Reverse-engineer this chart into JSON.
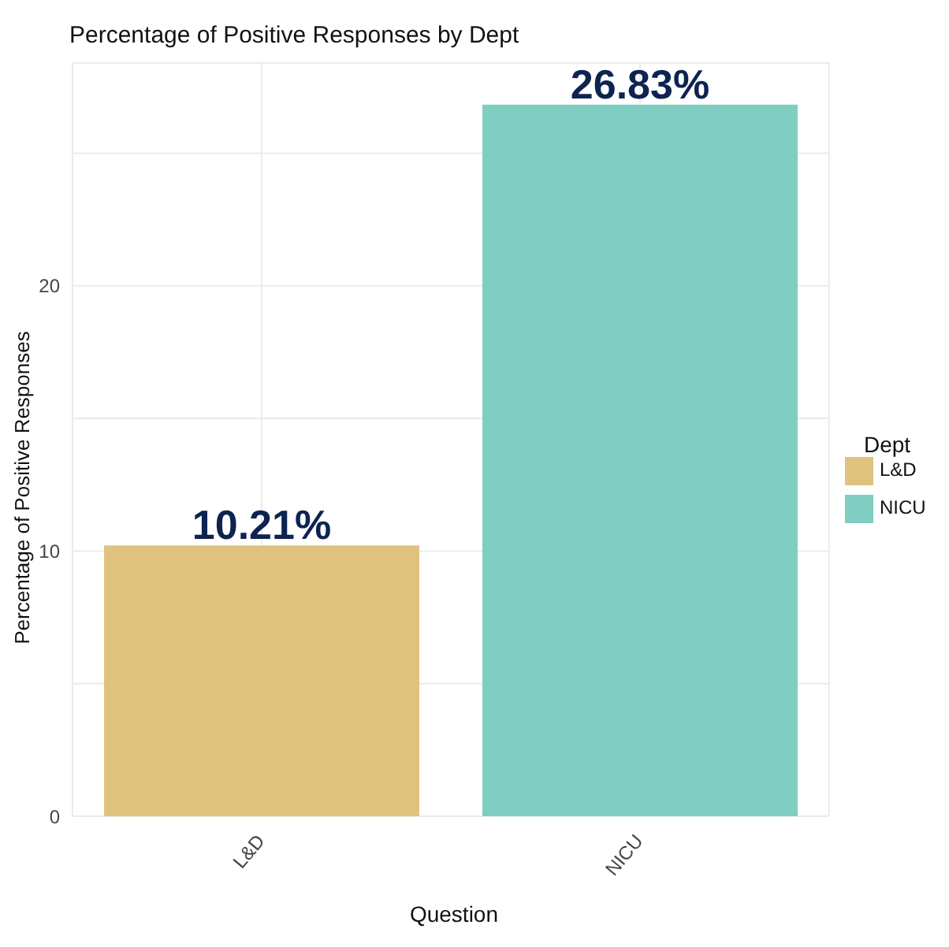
{
  "chart_data": {
    "type": "bar",
    "title": "Percentage of Positive Responses by Dept",
    "xlabel": "Question",
    "ylabel": "Percentage of Positive Responses",
    "legend_title": "Dept",
    "categories": [
      "L&D",
      "NICU"
    ],
    "series": [
      {
        "name": "L&D",
        "color": "#dfc27d",
        "values": [
          10.21,
          null
        ],
        "value_labels": [
          "10.21%",
          null
        ]
      },
      {
        "name": "NICU",
        "color": "#80cdc1",
        "values": [
          null,
          26.83
        ],
        "value_labels": [
          null,
          "26.83%"
        ]
      }
    ],
    "stacked": true,
    "ylim": [
      0,
      28.4
    ],
    "yticks": [
      0,
      {
        "value": 5,
        "label": null
      },
      10,
      {
        "value": 15,
        "label": null
      },
      20,
      {
        "value": 25,
        "label": null
      }
    ],
    "grid": true,
    "legend": "right"
  }
}
